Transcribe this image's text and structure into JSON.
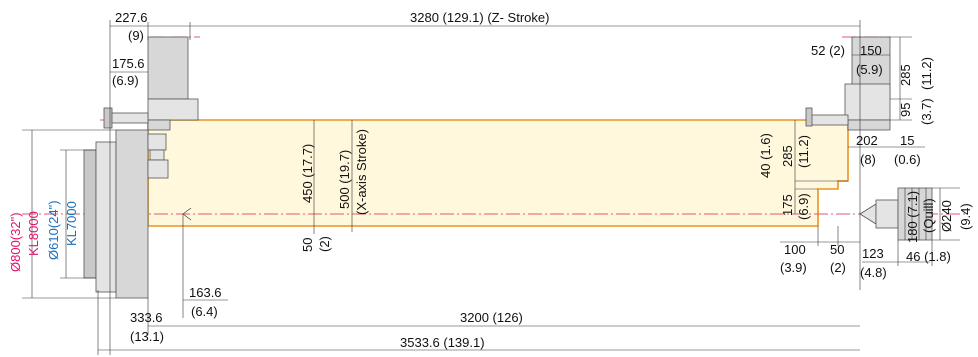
{
  "dimensions": {
    "z_stroke": "3280 (129.1) (Z- Stroke)",
    "d227": "227.6",
    "d227_in": "(9)",
    "d175": "175.6",
    "d175_in": "(6.9)",
    "d52": "52 (2)",
    "d150": "150",
    "d150_in": "(5.9)",
    "d285_top": "285",
    "d285_top_in": "(11.2)",
    "d95": "95",
    "d95_in": "(3.7)",
    "d202": "202",
    "d202_in": "(8)",
    "d15": "15",
    "d15_in": "(0.6)",
    "d40": "40 (1.6)",
    "d285_mid": "285",
    "d285_mid_in": "(11.2)",
    "d450": "450 (17.7)",
    "d500": "500 (19.7)",
    "x_stroke": "(X-axis Stroke)",
    "d175_low": "175",
    "d175_low_in": "(6.9)",
    "d50_left": "50",
    "d50_left_in": "(2)",
    "d100": "100",
    "d100_in": "(3.9)",
    "d50_right": "50",
    "d50_right_in": "(2)",
    "d123": "123",
    "d123_in": "(4.8)",
    "d46": "46 (1.8)",
    "d180": "180 (7.1)",
    "quill": "(Quill)",
    "d240": "Ø240",
    "d240_in": "(9.4)",
    "d163": "163.6",
    "d163_in": "(6.4)",
    "d333": "333.6",
    "d333_in": "(13.1)",
    "d3200": "3200 (126)",
    "d3533": "3533.6 (139.1)",
    "kl8000_dia": "Ø800(32\")",
    "kl8000": "KL8000",
    "kl7000_dia": "Ø610(24\")",
    "kl7000": "KL7000"
  },
  "colors": {
    "envelope_fill": "#fff8dd",
    "envelope_stroke": "#e8961e",
    "centerline": "#e05a70",
    "kl8000": "#e0156b",
    "kl7000": "#1c6fb8"
  }
}
